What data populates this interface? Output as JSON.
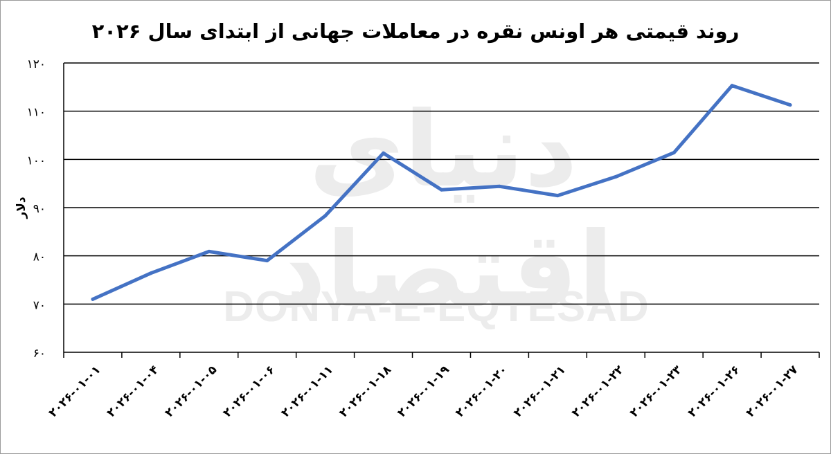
{
  "watermark": {
    "fa": "دنیای اقتصاد",
    "en": "DONYA-E-EQTESAD"
  },
  "chart_data": {
    "type": "line",
    "title": "روند قیمتی هر اونس نقره در معاملات جهانی از ابتدای سال ۲۰۲۶",
    "xlabel": "",
    "ylabel": "دلار",
    "ylim": [
      60,
      120
    ],
    "yticks": [
      60,
      70,
      80,
      90,
      100,
      110,
      120
    ],
    "ytick_labels": [
      "۶۰",
      "۷۰",
      "۸۰",
      "۹۰",
      "۱۰۰",
      "۱۱۰",
      "۱۲۰"
    ],
    "grid": true,
    "categories": [
      "۲۰۲۶-۰۱-۰۱",
      "۲۰۲۶-۰۱-۰۴",
      "۲۰۲۶-۰۱-۰۵",
      "۲۰۲۶-۰۱-۰۶",
      "۲۰۲۶-۰۱-۱۱",
      "۲۰۲۶-۰۱-۱۸",
      "۲۰۲۶-۰۱-۱۹",
      "۲۰۲۶-۰۱-۲۰",
      "۲۰۲۶-۰۱-۲۱",
      "۲۰۲۶-۰۱-۲۲",
      "۲۰۲۶-۰۱-۲۳",
      "۲۰۲۶-۰۱-۲۶",
      "۲۰۲۶-۰۱-۲۷"
    ],
    "values": [
      71,
      76.4,
      80.9,
      79,
      88.3,
      101.3,
      93.7,
      94.4,
      92.5,
      96.4,
      101.4,
      115.3,
      111.3
    ],
    "colors": {
      "line": "#4472C4",
      "grid": "#000000",
      "axis": "#000000"
    }
  }
}
